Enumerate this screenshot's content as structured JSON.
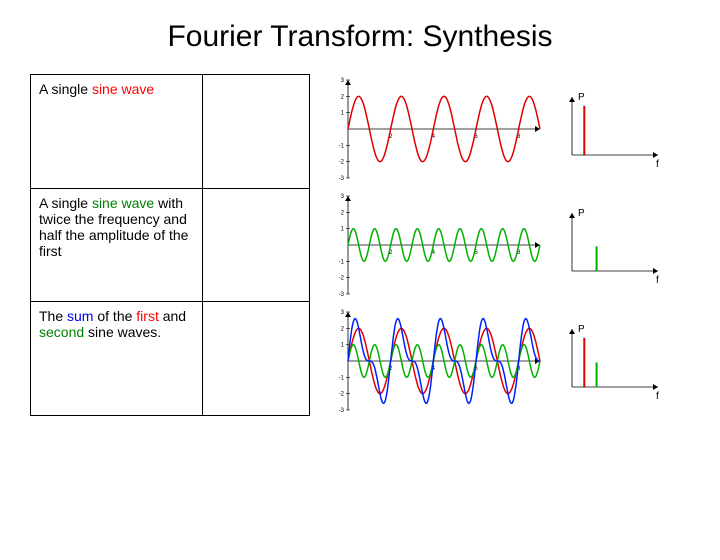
{
  "title": "Fourier Transform: Synthesis",
  "rows": [
    {
      "desc_plain_a": "A single ",
      "desc_hl_a": "sine wave",
      "hl_a_color": "#ff0000",
      "desc_plain_b": "",
      "time_chart": {
        "type": "line",
        "xlim": [
          0,
          9
        ],
        "ylim": [
          -3,
          3
        ],
        "xticks": [
          2,
          4,
          6,
          8
        ],
        "yticks": [
          -3,
          -2,
          -1,
          0,
          1,
          2,
          3
        ],
        "tick_fontsize": 6,
        "tick_color": "#000000",
        "axis_color": "#000000",
        "arrow": true,
        "series": [
          {
            "color": "#e10000",
            "amplitude": 2,
            "frequency": 0.5,
            "phase": 0,
            "linewidth": 1.5
          }
        ]
      },
      "freq_chart": {
        "type": "stem",
        "axis_label_y": "P",
        "axis_label_x": "f",
        "label_fontsize": 10,
        "axis_color": "#000000",
        "xlim": [
          0,
          10
        ],
        "ylim": [
          0,
          2.2
        ],
        "stems": [
          {
            "x": 1.5,
            "height": 2,
            "color": "#e10000",
            "linewidth": 2
          }
        ]
      }
    },
    {
      "desc_plain_a": "A single ",
      "desc_hl_a": "sine wave",
      "hl_a_color": "#008000",
      "desc_plain_b": " with twice the frequency and half the amplitude of the first",
      "time_chart": {
        "type": "line",
        "xlim": [
          0,
          9
        ],
        "ylim": [
          -3,
          3
        ],
        "xticks": [
          2,
          4,
          6,
          8
        ],
        "yticks": [
          -3,
          -2,
          -1,
          0,
          1,
          2,
          3
        ],
        "tick_fontsize": 6,
        "tick_color": "#000000",
        "axis_color": "#000000",
        "arrow": true,
        "series": [
          {
            "color": "#00b000",
            "amplitude": 1,
            "frequency": 1.0,
            "phase": 0,
            "linewidth": 1.5
          }
        ]
      },
      "freq_chart": {
        "type": "stem",
        "axis_label_y": "P",
        "axis_label_x": "f",
        "label_fontsize": 10,
        "axis_color": "#000000",
        "xlim": [
          0,
          10
        ],
        "ylim": [
          0,
          2.2
        ],
        "stems": [
          {
            "x": 3.0,
            "height": 1,
            "color": "#00b000",
            "linewidth": 2
          }
        ]
      }
    },
    {
      "desc_html": true,
      "desc_plain_a": "The ",
      "desc_hl_a": "sum",
      "hl_a_color": "#0000ff",
      "desc_plain_b": " of the ",
      "desc_hl_b": "first",
      "hl_b_color": "#ff0000",
      "desc_plain_c": " and ",
      "desc_hl_c": "second",
      "hl_c_color": "#008000",
      "desc_plain_d": " sine waves.",
      "time_chart": {
        "type": "line",
        "xlim": [
          0,
          9
        ],
        "ylim": [
          -3,
          3
        ],
        "xticks": [
          2,
          4,
          6,
          8
        ],
        "yticks": [
          -3,
          -2,
          -1,
          0,
          1,
          2,
          3
        ],
        "tick_fontsize": 6,
        "tick_color": "#000000",
        "axis_color": "#000000",
        "arrow": true,
        "series": [
          {
            "color": "#e10000",
            "amplitude": 2,
            "frequency": 0.5,
            "phase": 0,
            "linewidth": 1.5
          },
          {
            "color": "#00b000",
            "amplitude": 1,
            "frequency": 1.0,
            "phase": 0,
            "linewidth": 1.5
          },
          {
            "sum_of": [
              0,
              1
            ],
            "color": "#0020ff",
            "linewidth": 1.5
          }
        ]
      },
      "freq_chart": {
        "type": "stem",
        "axis_label_y": "P",
        "axis_label_x": "f",
        "label_fontsize": 10,
        "axis_color": "#000000",
        "xlim": [
          0,
          10
        ],
        "ylim": [
          0,
          2.2
        ],
        "stems": [
          {
            "x": 1.5,
            "height": 2,
            "color": "#e10000",
            "linewidth": 2
          },
          {
            "x": 3.0,
            "height": 1,
            "color": "#00b000",
            "linewidth": 2
          }
        ]
      }
    }
  ]
}
